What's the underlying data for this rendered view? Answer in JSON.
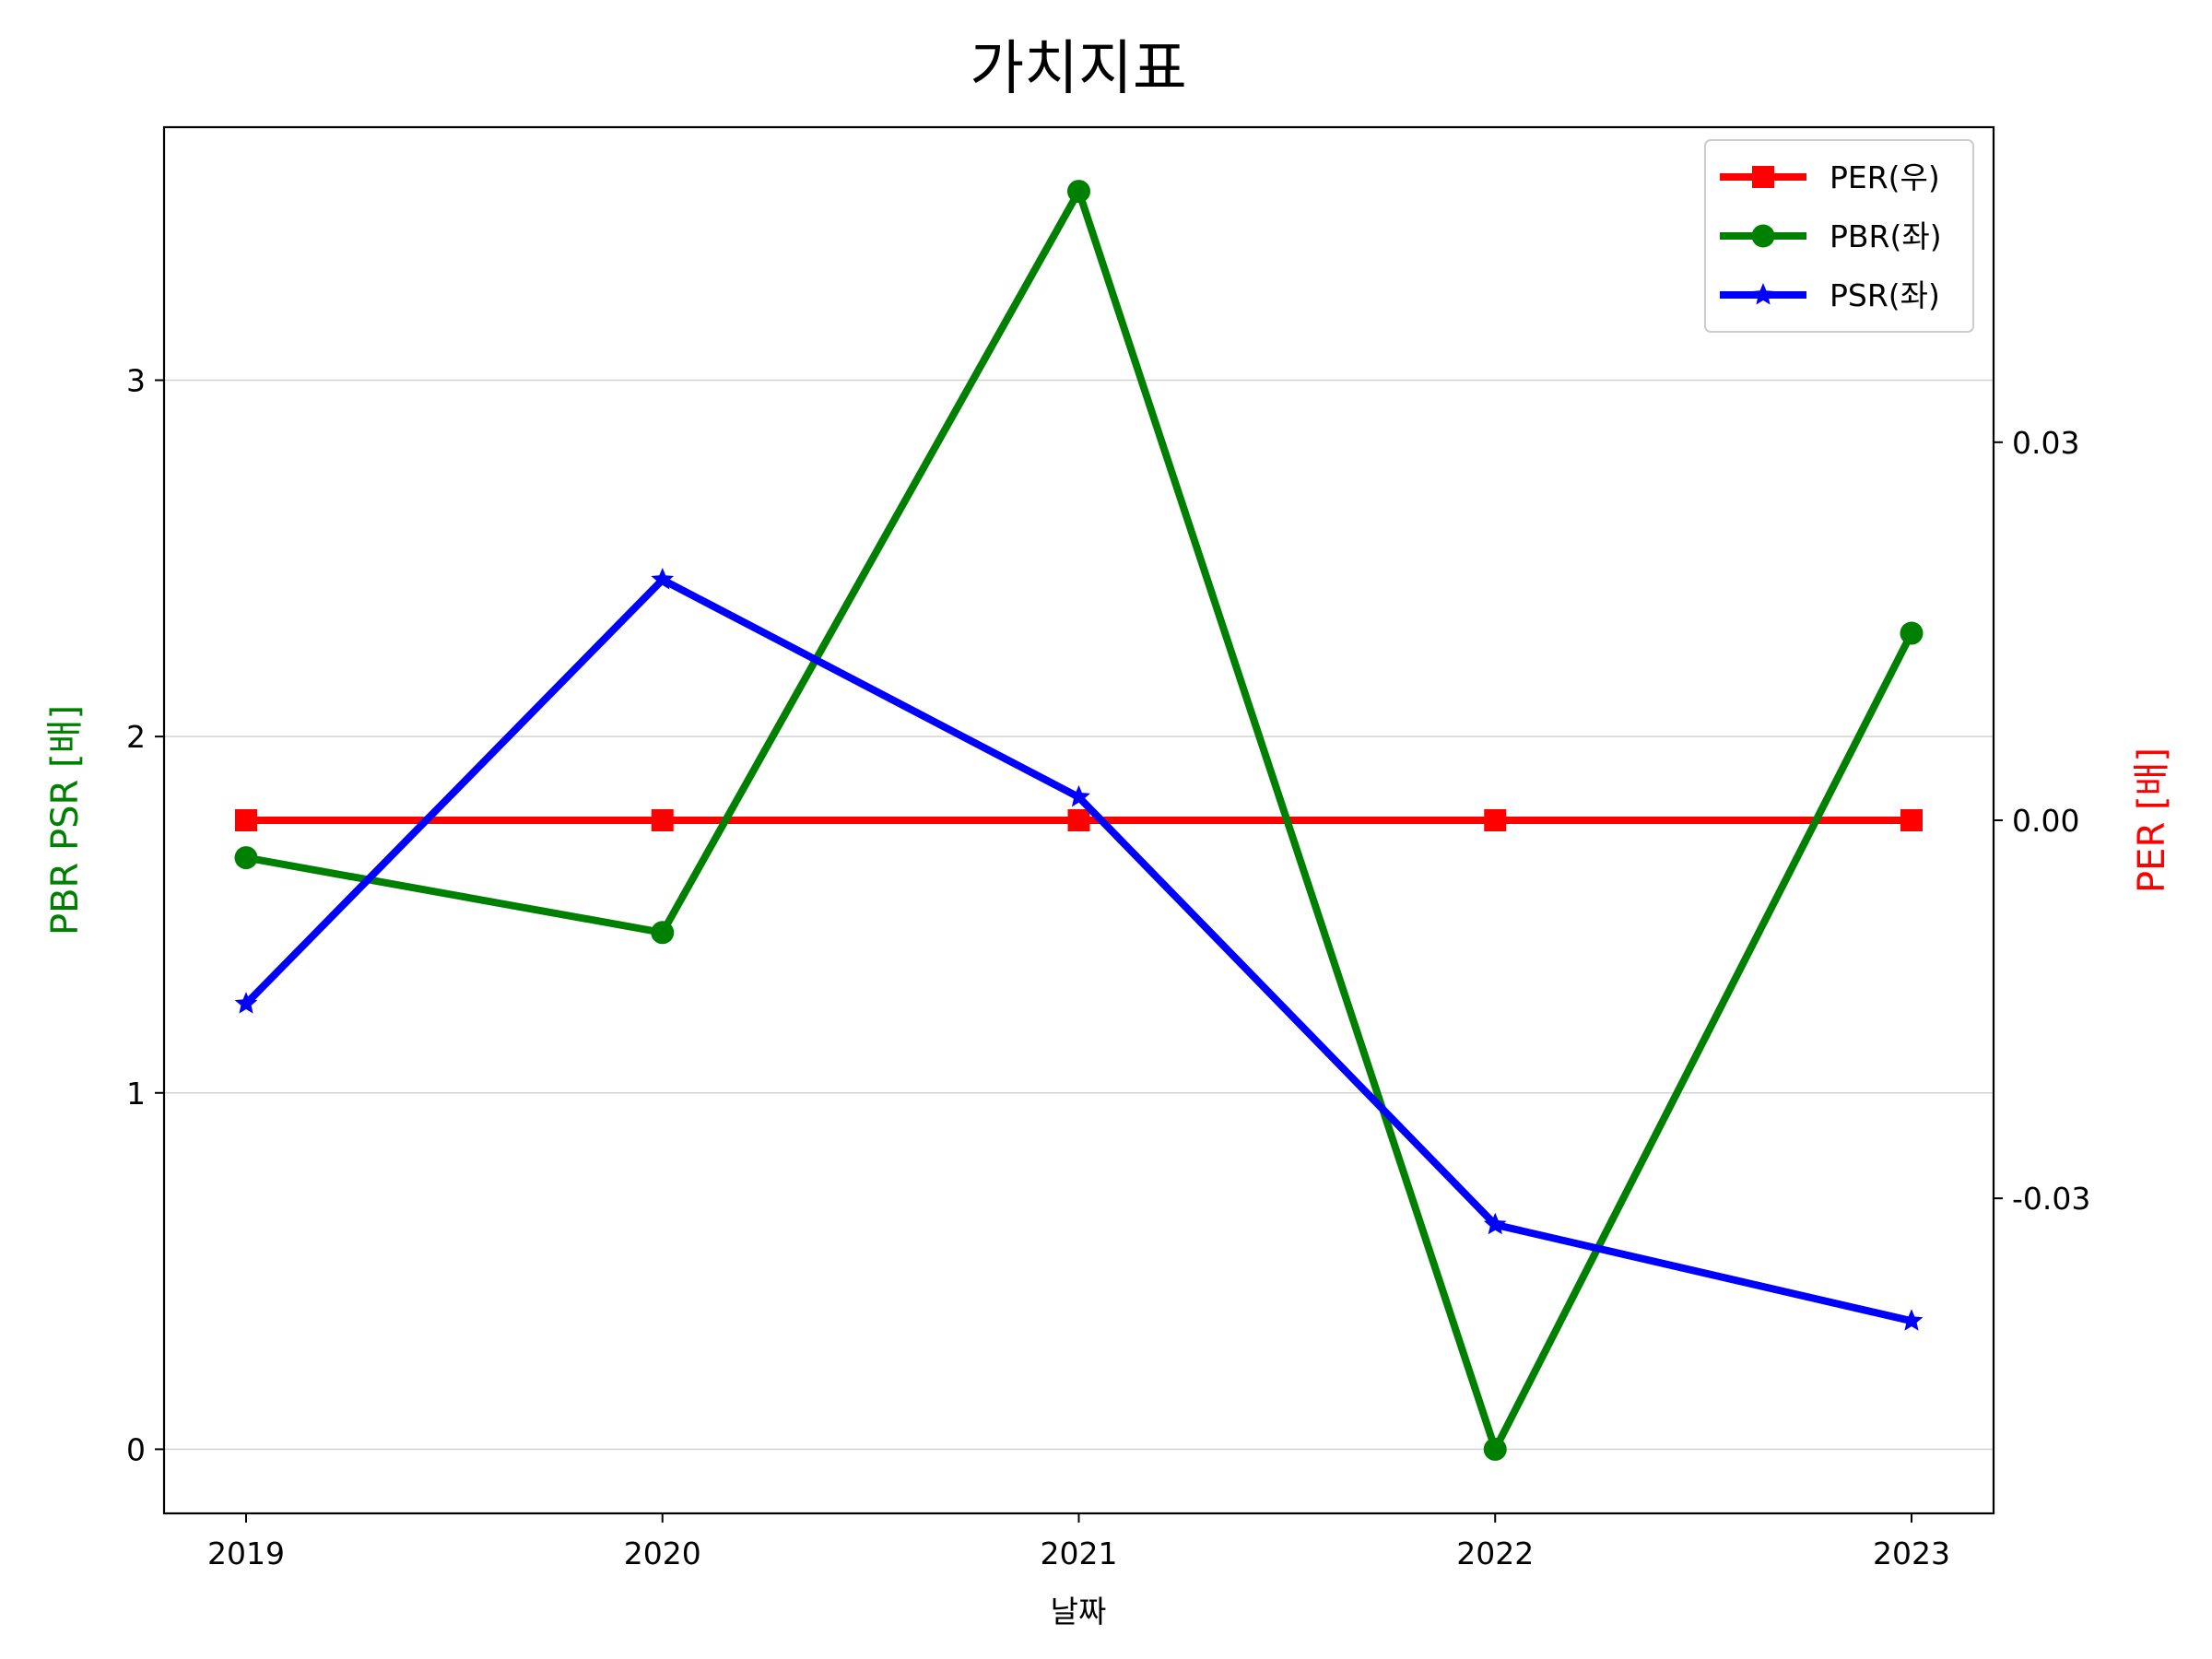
{
  "chart_data": {
    "type": "line",
    "title": "가치지표",
    "xlabel": "날짜",
    "ylabel_left": "PBR PSR [배]",
    "ylabel_right": "PER [배]",
    "categories": [
      "2019",
      "2020",
      "2021",
      "2022",
      "2023"
    ],
    "left_axis": {
      "ylim": [
        -0.18,
        3.71
      ],
      "ticks": [
        0,
        1,
        2,
        3
      ],
      "tick_labels": [
        "0",
        "1",
        "2",
        "3"
      ]
    },
    "right_axis": {
      "ylim": [
        -0.055,
        0.055
      ],
      "ticks": [
        -0.03,
        0.0,
        0.03
      ],
      "tick_labels": [
        "-0.03",
        "0.00",
        "0.03"
      ]
    },
    "grid": "horizontal",
    "legend_position": "top-right",
    "series": [
      {
        "name": "PER(우)",
        "axis": "right",
        "color": "#ff0000",
        "marker": "square",
        "values": [
          0,
          0,
          0,
          0,
          0
        ]
      },
      {
        "name": "PBR(좌)",
        "axis": "left",
        "color": "#008000",
        "marker": "circle",
        "values": [
          1.66,
          1.45,
          3.53,
          0.0,
          2.29
        ]
      },
      {
        "name": "PSR(좌)",
        "axis": "left",
        "color": "#0000ff",
        "marker": "star",
        "values": [
          1.25,
          2.44,
          1.83,
          0.63,
          0.36
        ]
      }
    ]
  }
}
